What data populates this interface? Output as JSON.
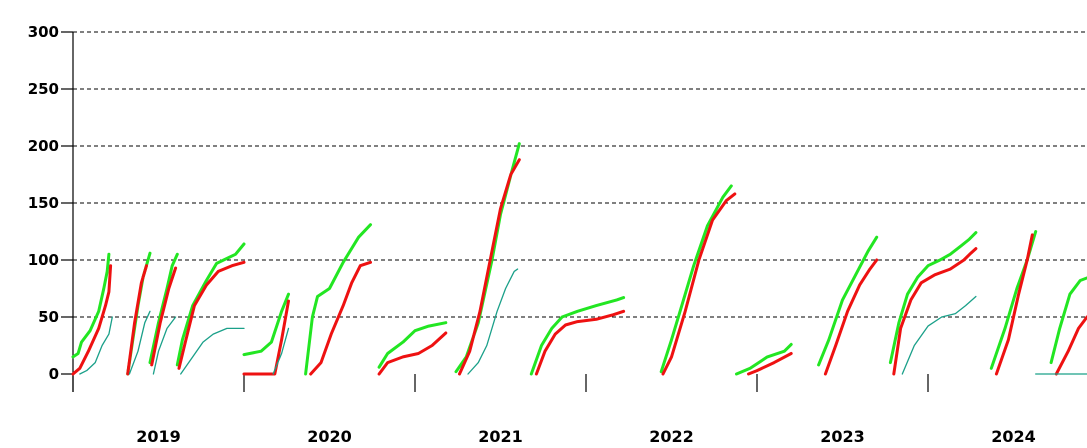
{
  "chart_data": {
    "type": "line",
    "title": "",
    "xlabel": "",
    "ylabel": "",
    "ylim": [
      0,
      300
    ],
    "y_ticks": [
      "0",
      "50",
      "100",
      "150",
      "200",
      "250",
      "300"
    ],
    "x_categories": [
      "2019",
      "2020",
      "2021",
      "2022",
      "2023",
      "2024"
    ],
    "grid": "horizontal-dashed",
    "legend": "none",
    "colors": {
      "green": "#22e622",
      "red": "#ee1111",
      "teal": "#1aa089",
      "grid": "#000000"
    },
    "series": [
      {
        "color_key": "green",
        "segments": [
          [
            [
              2019.0,
              15
            ],
            [
              2019.03,
              18
            ],
            [
              2019.05,
              28
            ],
            [
              2019.1,
              38
            ],
            [
              2019.15,
              55
            ],
            [
              2019.18,
              75
            ],
            [
              2019.2,
              90
            ],
            [
              2019.21,
              105
            ]
          ],
          [
            [
              2019.32,
              0
            ],
            [
              2019.35,
              30
            ],
            [
              2019.38,
              60
            ],
            [
              2019.41,
              85
            ],
            [
              2019.45,
              106
            ]
          ],
          [
            [
              2019.45,
              10
            ],
            [
              2019.5,
              45
            ],
            [
              2019.55,
              75
            ],
            [
              2019.58,
              95
            ],
            [
              2019.61,
              105
            ]
          ],
          [
            [
              2019.61,
              8
            ],
            [
              2019.64,
              30
            ],
            [
              2019.7,
              60
            ],
            [
              2019.78,
              82
            ],
            [
              2019.84,
              97
            ],
            [
              2019.95,
              105
            ],
            [
              2020.0,
              114
            ]
          ],
          [
            [
              2020.0,
              17
            ],
            [
              2020.1,
              20
            ],
            [
              2020.16,
              28
            ],
            [
              2020.22,
              55
            ],
            [
              2020.26,
              70
            ]
          ],
          [
            [
              2020.36,
              0
            ],
            [
              2020.4,
              50
            ],
            [
              2020.43,
              68
            ],
            [
              2020.5,
              75
            ],
            [
              2020.58,
              98
            ],
            [
              2020.67,
              120
            ],
            [
              2020.74,
              131
            ]
          ],
          [
            [
              2020.79,
              6
            ],
            [
              2020.84,
              18
            ],
            [
              2020.93,
              28
            ],
            [
              2021.0,
              38
            ],
            [
              2021.08,
              42
            ],
            [
              2021.18,
              45
            ]
          ],
          [
            [
              2021.24,
              2
            ],
            [
              2021.3,
              15
            ],
            [
              2021.37,
              45
            ],
            [
              2021.45,
              100
            ],
            [
              2021.5,
              140
            ],
            [
              2021.57,
              180
            ],
            [
              2021.61,
              202
            ]
          ],
          [
            [
              2021.68,
              0
            ],
            [
              2021.74,
              25
            ],
            [
              2021.8,
              40
            ],
            [
              2021.86,
              50
            ],
            [
              2021.95,
              55
            ],
            [
              2022.06,
              60
            ],
            [
              2022.18,
              65
            ],
            [
              2022.22,
              67
            ]
          ],
          [
            [
              2022.44,
              2
            ],
            [
              2022.5,
              30
            ],
            [
              2022.56,
              60
            ],
            [
              2022.63,
              95
            ],
            [
              2022.71,
              130
            ],
            [
              2022.8,
              155
            ],
            [
              2022.85,
              165
            ]
          ],
          [
            [
              2022.88,
              0
            ],
            [
              2022.96,
              5
            ],
            [
              2023.06,
              15
            ],
            [
              2023.16,
              20
            ],
            [
              2023.2,
              26
            ]
          ],
          [
            [
              2023.36,
              8
            ],
            [
              2023.42,
              30
            ],
            [
              2023.5,
              65
            ],
            [
              2023.57,
              85
            ],
            [
              2023.65,
              108
            ],
            [
              2023.7,
              120
            ]
          ],
          [
            [
              2023.78,
              10
            ],
            [
              2023.83,
              45
            ],
            [
              2023.88,
              70
            ],
            [
              2023.94,
              85
            ],
            [
              2024.0,
              95
            ],
            [
              2024.07,
              100
            ],
            [
              2024.13,
              105
            ],
            [
              2024.19,
              112
            ],
            [
              2024.24,
              118
            ],
            [
              2024.28,
              124
            ]
          ],
          [
            [
              2024.37,
              5
            ],
            [
              2024.45,
              40
            ],
            [
              2024.52,
              75
            ],
            [
              2024.58,
              100
            ],
            [
              2024.63,
              125
            ]
          ],
          [
            [
              2024.72,
              10
            ],
            [
              2024.77,
              40
            ],
            [
              2024.83,
              70
            ],
            [
              2024.89,
              82
            ],
            [
              2024.96,
              86
            ],
            [
              2025.01,
              88
            ]
          ]
        ]
      },
      {
        "color_key": "red",
        "segments": [
          [
            [
              2019.0,
              0
            ],
            [
              2019.04,
              5
            ],
            [
              2019.09,
              20
            ],
            [
              2019.15,
              40
            ],
            [
              2019.19,
              60
            ],
            [
              2019.21,
              72
            ],
            [
              2019.22,
              95
            ]
          ],
          [
            [
              2019.32,
              0
            ],
            [
              2019.36,
              45
            ],
            [
              2019.4,
              80
            ],
            [
              2019.43,
              95
            ]
          ],
          [
            [
              2019.46,
              8
            ],
            [
              2019.51,
              45
            ],
            [
              2019.56,
              75
            ],
            [
              2019.6,
              93
            ]
          ],
          [
            [
              2019.62,
              5
            ],
            [
              2019.66,
              30
            ],
            [
              2019.71,
              60
            ],
            [
              2019.78,
              78
            ],
            [
              2019.85,
              90
            ],
            [
              2019.93,
              95
            ],
            [
              2020.0,
              98
            ]
          ],
          [
            [
              2020.0,
              0
            ],
            [
              2020.18,
              0
            ],
            [
              2020.22,
              30
            ],
            [
              2020.26,
              64
            ]
          ],
          [
            [
              2020.39,
              0
            ],
            [
              2020.45,
              10
            ],
            [
              2020.51,
              35
            ],
            [
              2020.58,
              60
            ],
            [
              2020.63,
              80
            ],
            [
              2020.68,
              95
            ],
            [
              2020.74,
              98
            ]
          ],
          [
            [
              2020.79,
              0
            ],
            [
              2020.84,
              10
            ],
            [
              2020.93,
              15
            ],
            [
              2021.02,
              18
            ],
            [
              2021.1,
              25
            ],
            [
              2021.18,
              36
            ]
          ],
          [
            [
              2021.26,
              0
            ],
            [
              2021.32,
              20
            ],
            [
              2021.38,
              55
            ],
            [
              2021.44,
              100
            ],
            [
              2021.5,
              145
            ],
            [
              2021.56,
              175
            ],
            [
              2021.61,
              188
            ]
          ],
          [
            [
              2021.71,
              0
            ],
            [
              2021.76,
              20
            ],
            [
              2021.82,
              35
            ],
            [
              2021.88,
              43
            ],
            [
              2021.95,
              46
            ],
            [
              2022.06,
              48
            ],
            [
              2022.16,
              52
            ],
            [
              2022.22,
              55
            ]
          ],
          [
            [
              2022.45,
              0
            ],
            [
              2022.5,
              15
            ],
            [
              2022.58,
              55
            ],
            [
              2022.66,
              100
            ],
            [
              2022.74,
              135
            ],
            [
              2022.82,
              152
            ],
            [
              2022.87,
              158
            ]
          ],
          [
            [
              2022.95,
              0
            ],
            [
              2023.0,
              3
            ],
            [
              2023.1,
              10
            ],
            [
              2023.2,
              18
            ]
          ],
          [
            [
              2023.4,
              0
            ],
            [
              2023.46,
              25
            ],
            [
              2023.53,
              55
            ],
            [
              2023.6,
              78
            ],
            [
              2023.66,
              92
            ],
            [
              2023.7,
              100
            ]
          ],
          [
            [
              2023.8,
              0
            ],
            [
              2023.84,
              40
            ],
            [
              2023.9,
              65
            ],
            [
              2023.96,
              80
            ],
            [
              2024.04,
              87
            ],
            [
              2024.13,
              92
            ],
            [
              2024.21,
              100
            ],
            [
              2024.25,
              106
            ],
            [
              2024.28,
              110
            ]
          ],
          [
            [
              2024.4,
              0
            ],
            [
              2024.47,
              30
            ],
            [
              2024.53,
              70
            ],
            [
              2024.58,
              100
            ],
            [
              2024.61,
              122
            ]
          ],
          [
            [
              2024.75,
              0
            ],
            [
              2024.82,
              20
            ],
            [
              2024.88,
              40
            ],
            [
              2024.93,
              50
            ],
            [
              2024.98,
              55
            ],
            [
              2025.01,
              57
            ]
          ]
        ]
      },
      {
        "color_key": "teal",
        "segments": [
          [
            [
              2019.04,
              0
            ],
            [
              2019.08,
              3
            ],
            [
              2019.13,
              10
            ],
            [
              2019.17,
              25
            ],
            [
              2019.21,
              35
            ],
            [
              2019.23,
              50
            ]
          ],
          [
            [
              2019.33,
              0
            ],
            [
              2019.38,
              20
            ],
            [
              2019.42,
              45
            ],
            [
              2019.45,
              55
            ]
          ],
          [
            [
              2019.47,
              0
            ],
            [
              2019.5,
              20
            ],
            [
              2019.55,
              40
            ],
            [
              2019.6,
              50
            ]
          ],
          [
            [
              2019.63,
              0
            ],
            [
              2019.7,
              15
            ],
            [
              2019.76,
              28
            ],
            [
              2019.82,
              35
            ],
            [
              2019.9,
              40
            ],
            [
              2020.0,
              40
            ]
          ],
          [
            [
              2020.17,
              0
            ],
            [
              2020.22,
              18
            ],
            [
              2020.26,
              40
            ]
          ],
          [
            [
              2021.31,
              0
            ],
            [
              2021.37,
              10
            ],
            [
              2021.42,
              25
            ],
            [
              2021.48,
              55
            ],
            [
              2021.53,
              75
            ],
            [
              2021.58,
              90
            ],
            [
              2021.6,
              92
            ]
          ],
          [
            [
              2023.85,
              0
            ],
            [
              2023.92,
              25
            ],
            [
              2024.0,
              42
            ],
            [
              2024.08,
              50
            ],
            [
              2024.16,
              53
            ],
            [
              2024.22,
              60
            ],
            [
              2024.28,
              68
            ]
          ],
          [
            [
              2024.63,
              0
            ],
            [
              2025.02,
              0
            ]
          ]
        ]
      }
    ]
  }
}
